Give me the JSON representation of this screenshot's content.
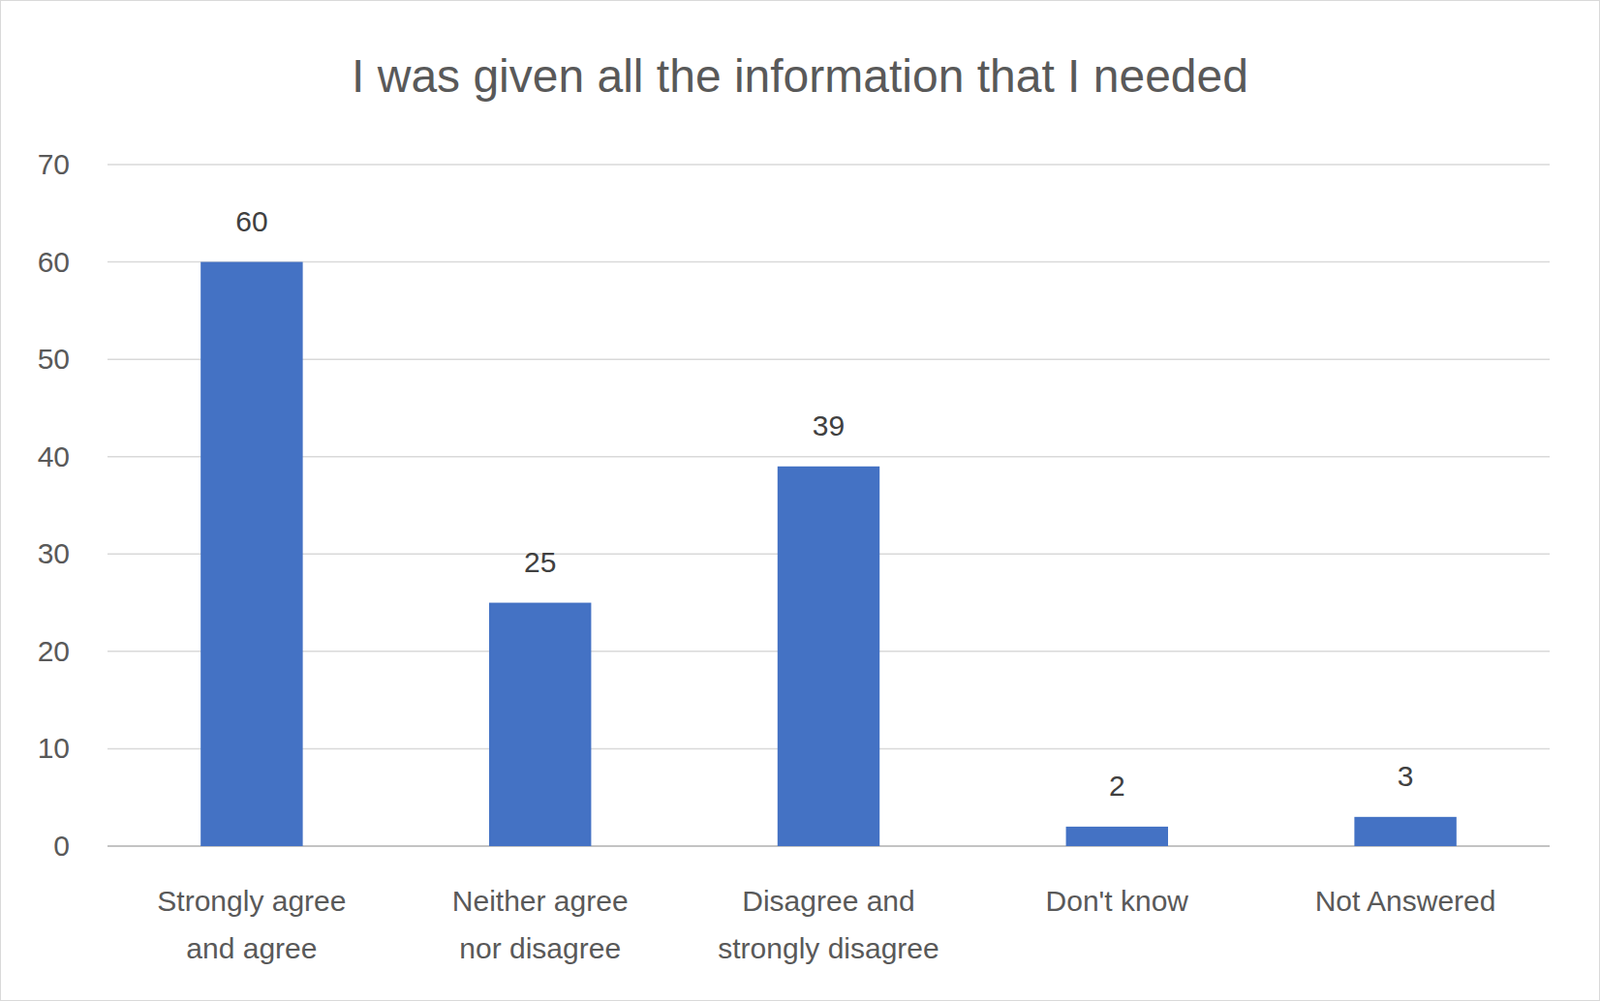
{
  "chart_data": {
    "type": "bar",
    "title": "I was given all the information that I needed",
    "categories": [
      "Strongly agree and agree",
      "Neither agree nor disagree",
      "Disagree and strongly disagree",
      "Don't know",
      "Not Answered"
    ],
    "values": [
      60,
      25,
      39,
      2,
      3
    ],
    "color": "#4472c4",
    "ylim": [
      0,
      70
    ],
    "yticks": [
      0,
      10,
      20,
      30,
      40,
      50,
      60,
      70
    ],
    "grid": true,
    "data_labels": true
  }
}
